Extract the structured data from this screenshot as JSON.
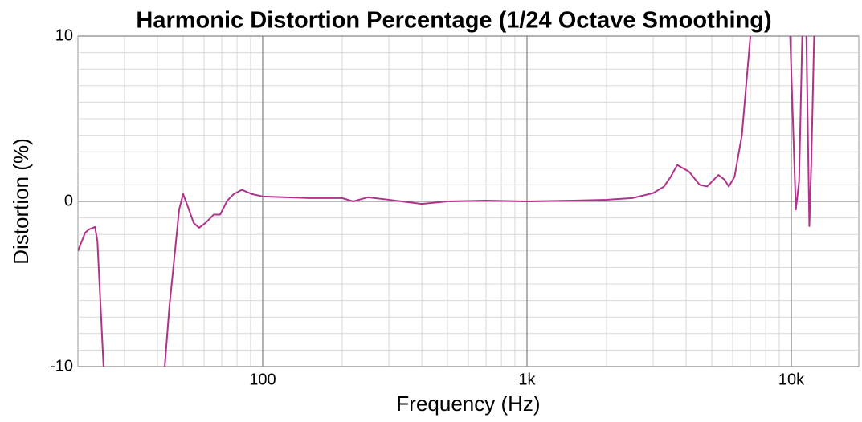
{
  "chart_data": {
    "type": "line",
    "title": "Harmonic Distortion Percentage (1/24 Octave Smoothing)",
    "x_label": "Frequency (Hz)",
    "y_label": "Distortion (%)",
    "x_scale": "log",
    "xlim": [
      20,
      18000
    ],
    "xticks": [
      100,
      {
        "value": 1000,
        "label": "1k"
      },
      {
        "value": 10000,
        "label": "10k"
      }
    ],
    "ylim": [
      -10,
      10
    ],
    "yticks": [
      -10,
      0,
      10
    ],
    "yminor_step": 1,
    "grid": true,
    "minor_grid": true,
    "x": [
      20,
      21.3,
      22,
      23.2,
      23.7,
      25,
      35,
      42.6,
      44.4,
      46.4,
      48.3,
      50,
      52.2,
      54.8,
      57.5,
      60.8,
      65.3,
      69,
      73.5,
      77.8,
      83.4,
      90.7,
      100,
      150,
      200,
      220,
      250,
      300,
      400,
      500,
      700,
      1000,
      1500,
      2000,
      2500,
      3000,
      3300,
      3500,
      3700,
      4100,
      4500,
      4800,
      5300,
      5600,
      5800,
      6100,
      6500,
      7000,
      8000,
      9900,
      10400,
      10700,
      11000,
      11200,
      11400,
      11700,
      11900,
      12200
    ],
    "series": [
      {
        "name": "Distortion",
        "color": "#b0328c",
        "values": [
          -3.0,
          -1.9,
          -1.7,
          -1.55,
          -2.4,
          -10,
          null,
          -10,
          -6.3,
          -3.3,
          -0.5,
          0.45,
          -0.35,
          -1.3,
          -1.6,
          -1.3,
          -0.8,
          -0.8,
          0.05,
          0.45,
          0.7,
          0.45,
          0.3,
          0.2,
          0.2,
          0.0,
          0.25,
          0.1,
          -0.15,
          0.0,
          0.05,
          0.0,
          0.05,
          0.1,
          0.2,
          0.5,
          0.9,
          1.5,
          2.2,
          1.8,
          1.0,
          0.9,
          1.6,
          1.3,
          0.9,
          1.5,
          4,
          10,
          null,
          10,
          -0.5,
          1.2,
          10,
          null,
          10,
          -1.5,
          2.3,
          10
        ]
      }
    ]
  }
}
